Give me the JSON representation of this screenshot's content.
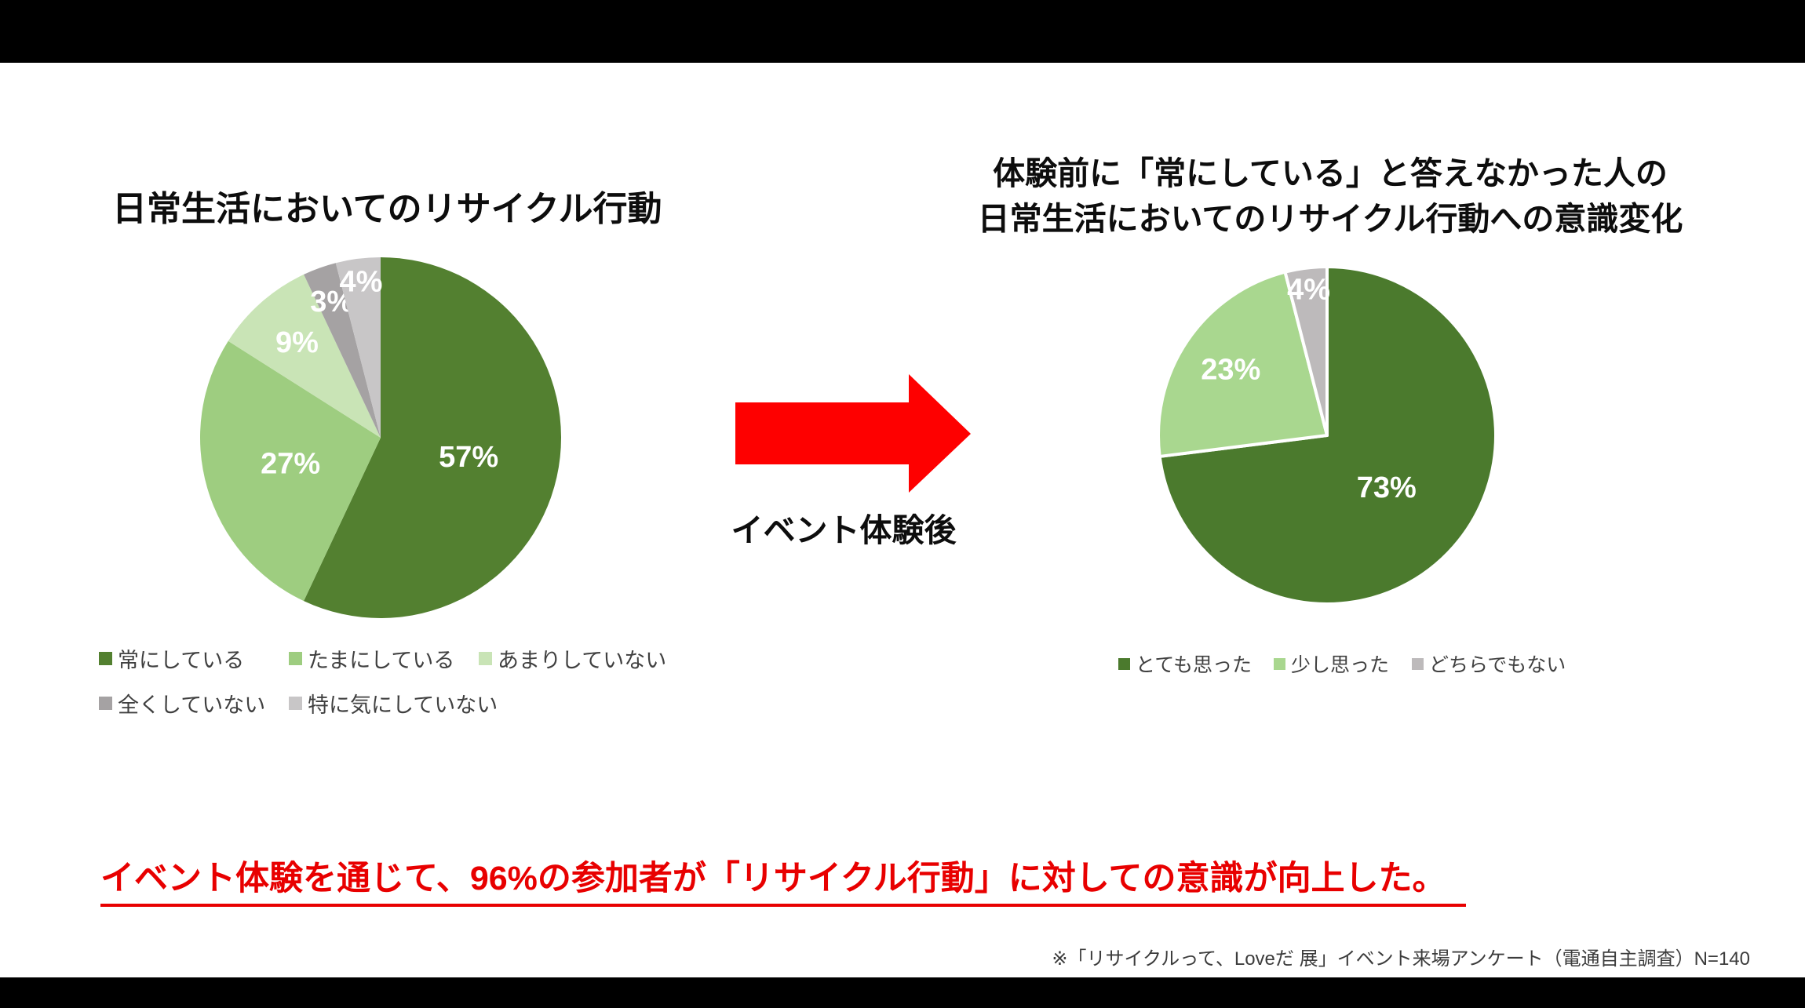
{
  "letterbox_color": "#000000",
  "canvas_color": "#ffffff",
  "chart_data": [
    {
      "type": "pie",
      "title": "日常生活においてのリサイクル行動",
      "categories": [
        "常にしている",
        "たまにしている",
        "あまりしていない",
        "全くしていない",
        "特に気にしていない"
      ],
      "values": [
        57,
        27,
        9,
        3,
        4
      ],
      "data_labels": [
        "57%",
        "27%",
        "9%",
        "3%",
        "4%"
      ],
      "colors": [
        "#538030",
        "#9ecd80",
        "#c9e4b6",
        "#a5a2a3",
        "#c8c6c7"
      ],
      "start_angle_deg": 0,
      "direction": "clockwise",
      "legend_position": "bottom",
      "slice_border": {
        "color": "#ffffff",
        "width": 0
      },
      "label_radius_fraction": [
        0.5,
        0.52,
        0.7,
        0.8,
        0.87
      ],
      "data_label_color": "#ffffff"
    },
    {
      "type": "pie",
      "title": "体験前に「常にしている」と答えなかった人の 日常生活においてのリサイクル行動への意識変化",
      "title_lines": [
        "体験前に「常にしている」と答えなかった人の",
        "日常生活においてのリサイクル行動への意識変化"
      ],
      "categories": [
        "とても思った",
        "少し思った",
        "どちらでもない"
      ],
      "values": [
        73,
        23,
        4
      ],
      "data_labels": [
        "73%",
        "23%",
        "4%"
      ],
      "colors": [
        "#4b7a2d",
        "#a9d78f",
        "#bdbabb"
      ],
      "start_angle_deg": 0,
      "direction": "clockwise",
      "legend_position": "bottom",
      "slice_border": {
        "color": "#ffffff",
        "width": 4
      },
      "label_radius_fraction": [
        0.47,
        0.69,
        0.87
      ],
      "data_label_color": "#ffffff"
    }
  ],
  "arrow": {
    "label": "イベント体験後",
    "color": "#fe0000"
  },
  "headline": {
    "text": "イベント体験を通じて、96%の参加者が「リサイクル行動」に対しての意識が向上した。",
    "color": "#e80000"
  },
  "footnote": {
    "text": "※「リサイクルって、Loveだ 展」イベント来場アンケート（電通自主調査）N=140"
  }
}
